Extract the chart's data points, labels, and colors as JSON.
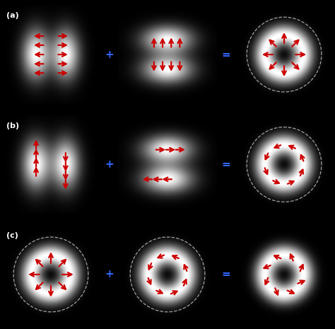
{
  "fig_bg": "#000000",
  "panel_labels": [
    "(a)",
    "(b)",
    "(c)"
  ],
  "plus_color": "#3366ff",
  "equal_color": "#3366ff",
  "arrow_color": "#cc0000",
  "dashed_circle_color": "#bbbbbb",
  "row_a": {
    "panel1_lobes": "horizontal_pair",
    "panel1_arrows": "horizontal_outward",
    "panel2_lobes": "vertical_pair",
    "panel2_arrows": "vertical_outward",
    "panel3_type": "donut_radial"
  },
  "row_b": {
    "panel1_lobes": "horizontal_pair",
    "panel1_arrows": "vertical_up_left_down_right",
    "panel2_lobes": "vertical_pair",
    "panel2_arrows": "horizontal_right_top_left_bottom",
    "panel3_type": "donut_azimuthal"
  },
  "row_c": {
    "panel1_type": "donut_radial",
    "panel2_type": "donut_azimuthal",
    "panel3_type": "donut_spiral"
  }
}
